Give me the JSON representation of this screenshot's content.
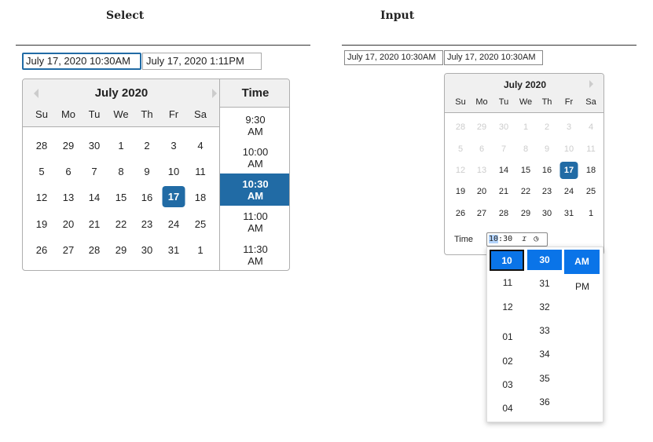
{
  "select": {
    "heading": "Select",
    "start_value": "July 17, 2020 10:30AM",
    "end_value": "July 17, 2020 1:11PM",
    "calendar": {
      "month": "July 2020",
      "weekdays": [
        "Su",
        "Mo",
        "Tu",
        "We",
        "Th",
        "Fr",
        "Sa"
      ],
      "weeks": [
        [
          "28",
          "29",
          "30",
          "1",
          "2",
          "3",
          "4"
        ],
        [
          "5",
          "6",
          "7",
          "8",
          "9",
          "10",
          "11"
        ],
        [
          "12",
          "13",
          "14",
          "15",
          "16",
          "17",
          "18"
        ],
        [
          "19",
          "20",
          "21",
          "22",
          "23",
          "24",
          "25"
        ],
        [
          "26",
          "27",
          "28",
          "29",
          "30",
          "31",
          "1"
        ]
      ],
      "selected_day": "17"
    },
    "time": {
      "header": "Time",
      "options": [
        "9:30 AM",
        "10:00 AM",
        "10:30 AM",
        "11:00 AM",
        "11:30 AM"
      ],
      "selected": "10:30 AM"
    }
  },
  "input": {
    "heading": "Input",
    "start_value": "July 17, 2020 10:30AM",
    "end_value": "July 17, 2020 10:30AM",
    "calendar": {
      "month": "July 2020",
      "weekdays": [
        "Su",
        "Mo",
        "Tu",
        "We",
        "Th",
        "Fr",
        "Sa"
      ],
      "weeks": [
        [
          "28",
          "29",
          "30",
          "1",
          "2",
          "3",
          "4"
        ],
        [
          "5",
          "6",
          "7",
          "8",
          "9",
          "10",
          "11"
        ],
        [
          "12",
          "13",
          "14",
          "15",
          "16",
          "17",
          "18"
        ],
        [
          "19",
          "20",
          "21",
          "22",
          "23",
          "24",
          "25"
        ],
        [
          "26",
          "27",
          "28",
          "29",
          "30",
          "31",
          "1"
        ]
      ],
      "selected_day": "17",
      "disabled_before_index": 16
    },
    "time_label": "Time",
    "time_hour": "10",
    "time_minute": "30",
    "time_sep": ":",
    "hours": [
      "10",
      "11",
      "12",
      "01",
      "02",
      "03",
      "04"
    ],
    "minutes": [
      "30",
      "31",
      "32",
      "33",
      "34",
      "35",
      "36"
    ],
    "periods": [
      "AM",
      "PM"
    ]
  },
  "colors": {
    "selected": "#216ba5",
    "dropdown_selected": "#0a74e8"
  }
}
